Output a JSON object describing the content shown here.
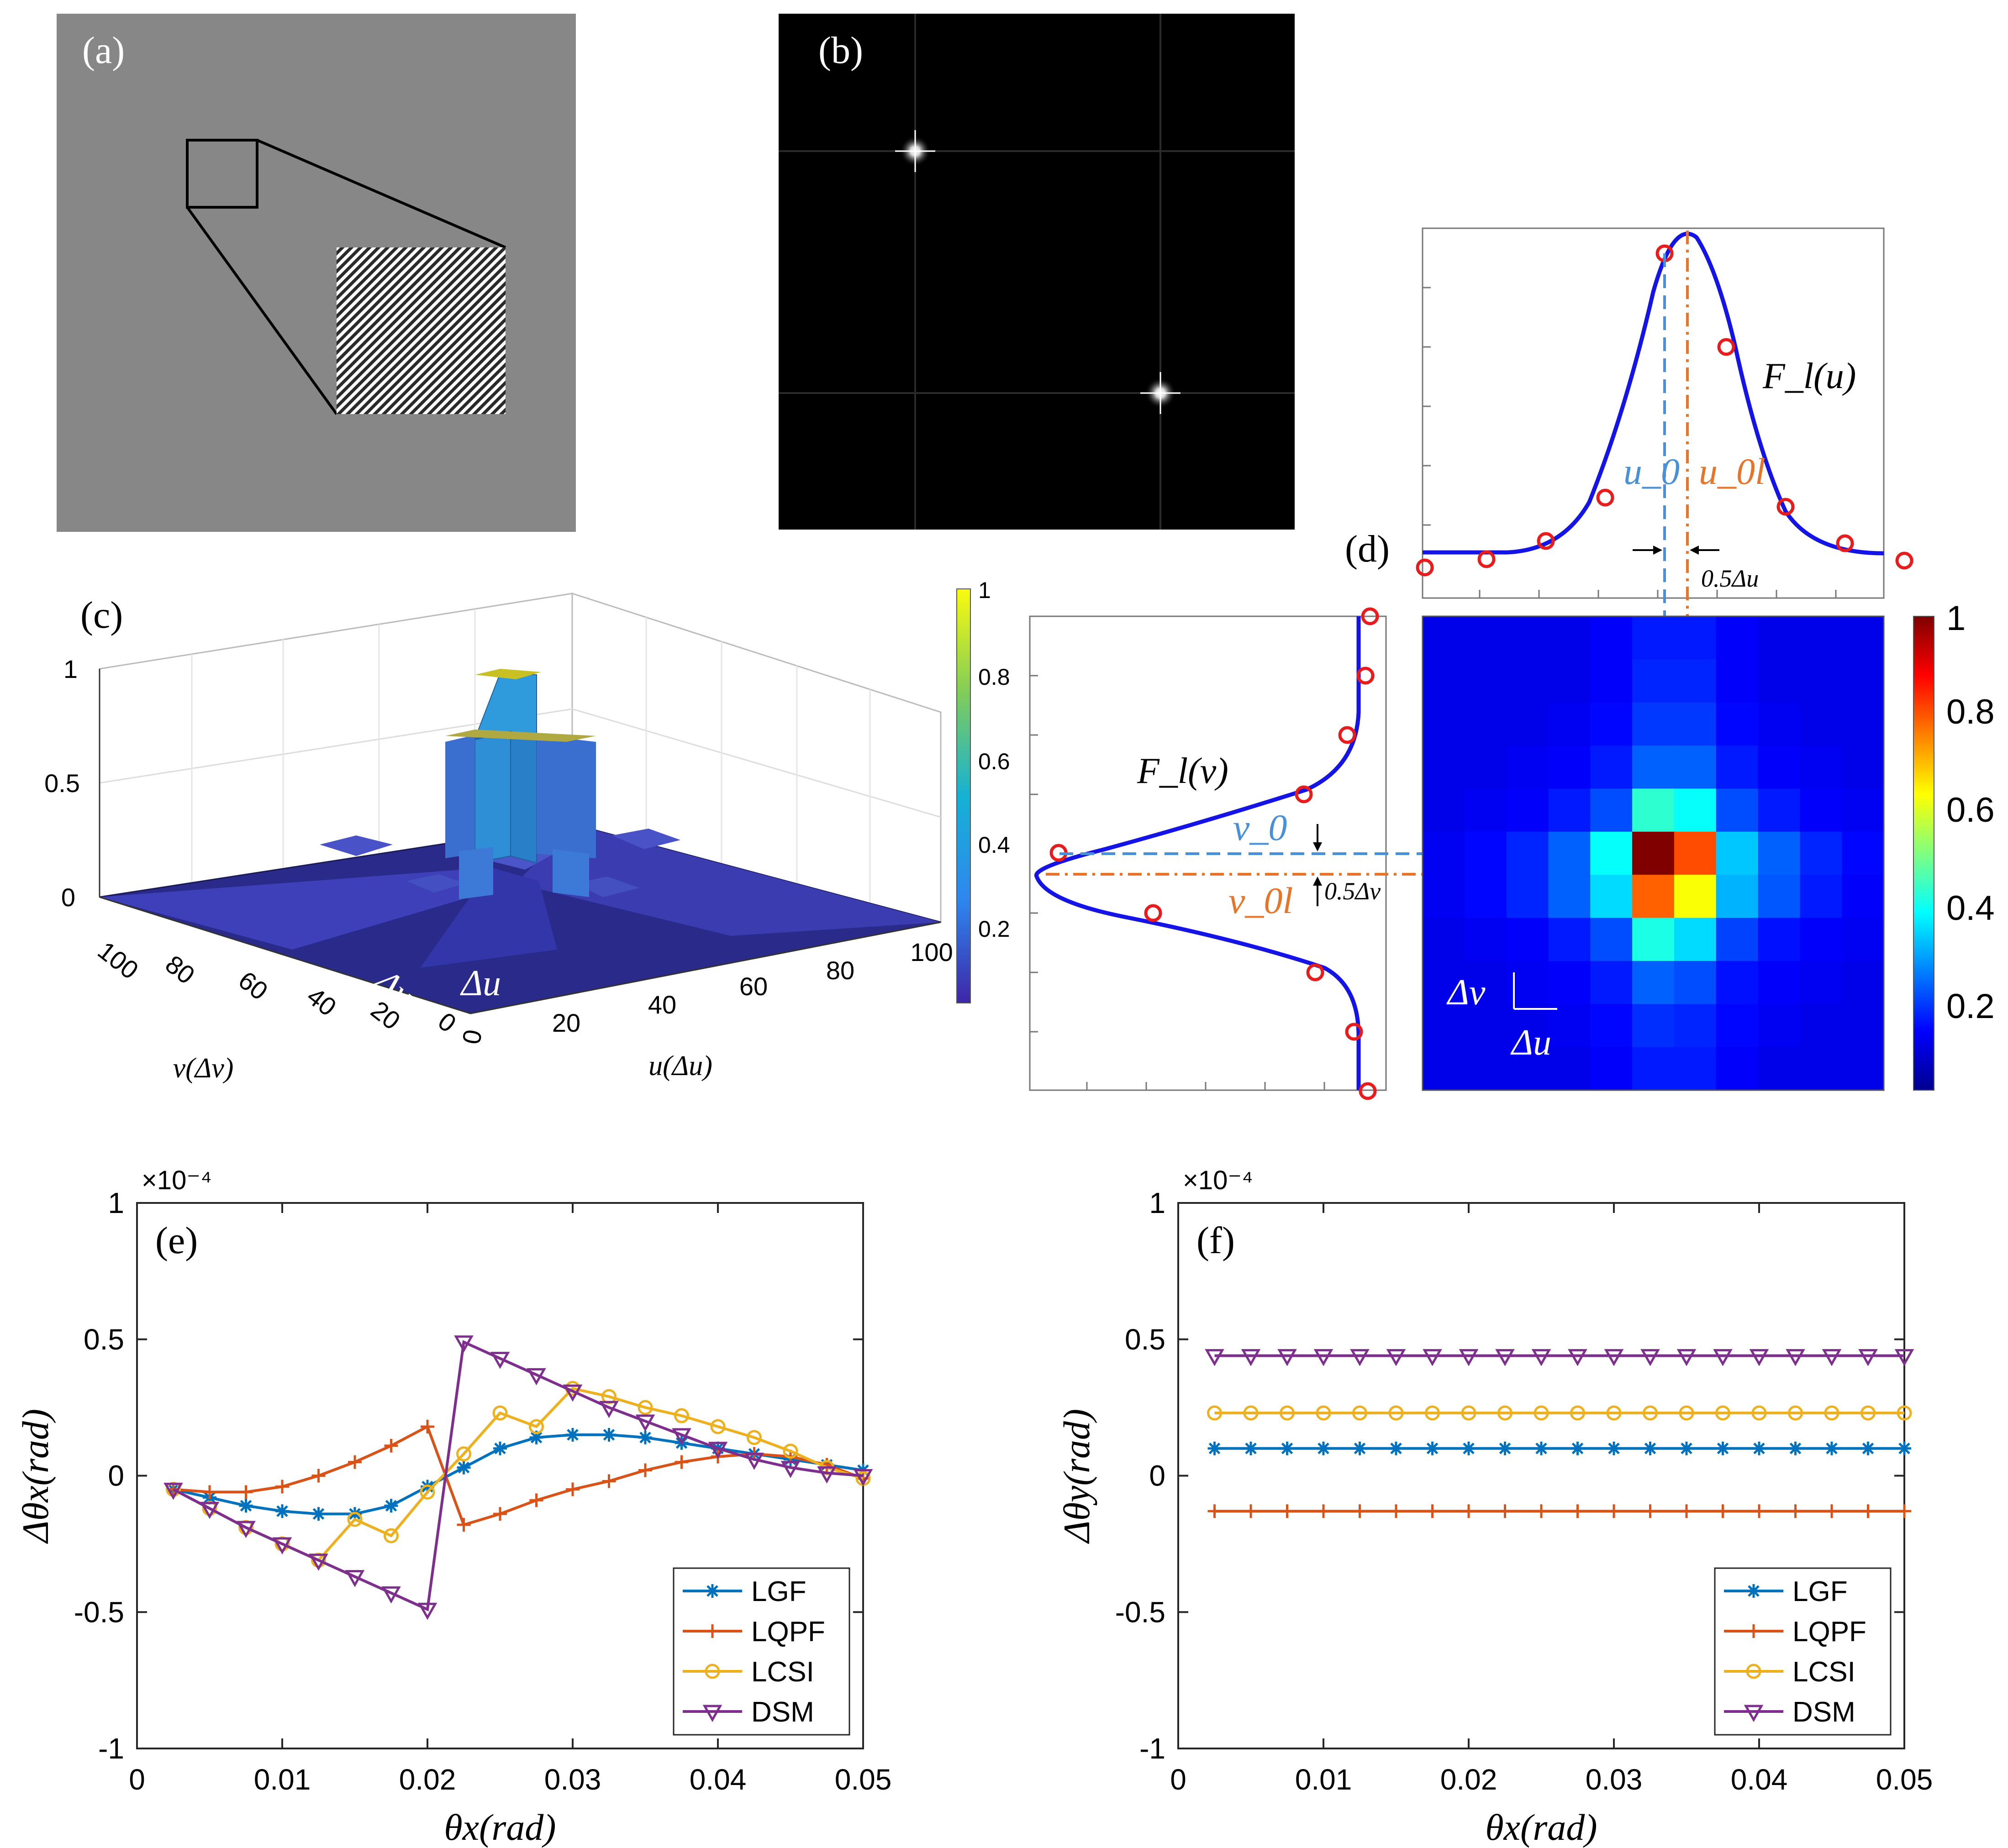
{
  "panels": {
    "a": {
      "label": "(a)"
    },
    "b": {
      "label": "(b)"
    },
    "c": {
      "label": "(c)",
      "zticks": [
        "0",
        "0.5",
        "1"
      ],
      "vticks": [
        "100",
        "80",
        "60",
        "40",
        "20",
        "0"
      ],
      "uticks": [
        "0",
        "20",
        "40",
        "60",
        "80",
        "100"
      ],
      "xlabel": "v(Δv)",
      "ylabel": "u(Δu)",
      "dv_label": "Δv",
      "du_label": "Δu",
      "colorbar_ticks": [
        "1",
        "0.8",
        "0.6",
        "0.4",
        "0.2"
      ],
      "colors": {
        "surface_low": "#26248e",
        "surface_peak": "#2f9bdc",
        "top": "#c9c023"
      }
    },
    "d": {
      "label": "(d)",
      "fu_label": "F_l(u)",
      "fv_label": "F_l(v)",
      "u0": "u_0",
      "u0l": "u_0l",
      "v0": "v_0",
      "v0l": "v_0l",
      "half_du": "0.5Δu",
      "half_dv": "0.5Δv",
      "dv_label": "Δv",
      "du_label": "Δu",
      "colorbar_ticks": [
        "1",
        "0.8",
        "0.6",
        "0.4",
        "0.2"
      ],
      "colors": {
        "fit": "#1414e6",
        "sample": "#e81c1c",
        "u0": "#4a90d9",
        "u0l": "#e8742a"
      }
    }
  },
  "chart_data": [
    {
      "panel": "(e)",
      "type": "line",
      "xlabel": "θx(rad)",
      "ylabel": "Δθx(rad)",
      "exponent": "×10⁻⁴",
      "xlim": [
        0,
        0.05
      ],
      "ylim": [
        -1,
        1
      ],
      "xticks": [
        "0",
        "0.01",
        "0.02",
        "0.03",
        "0.04",
        "0.05"
      ],
      "yticks": [
        "1",
        "0.5",
        "0",
        "-0.5",
        "-1"
      ],
      "x": [
        0.0025,
        0.005,
        0.0075,
        0.01,
        0.0125,
        0.015,
        0.0175,
        0.02,
        0.0225,
        0.025,
        0.0275,
        0.03,
        0.0325,
        0.035,
        0.0375,
        0.04,
        0.0425,
        0.045,
        0.0475,
        0.05
      ],
      "series": [
        {
          "name": "LGF",
          "color": "#0072bd",
          "marker": "star",
          "values": [
            -0.05,
            -0.08,
            -0.11,
            -0.13,
            -0.14,
            -0.14,
            -0.11,
            -0.04,
            0.03,
            0.1,
            0.14,
            0.15,
            0.15,
            0.14,
            0.12,
            0.1,
            0.08,
            0.06,
            0.04,
            0.02
          ]
        },
        {
          "name": "LQPF",
          "color": "#d95319",
          "marker": "plus",
          "values": [
            -0.05,
            -0.06,
            -0.06,
            -0.04,
            0.0,
            0.05,
            0.11,
            0.18,
            -0.18,
            -0.14,
            -0.09,
            -0.05,
            -0.02,
            0.02,
            0.05,
            0.07,
            0.08,
            0.07,
            0.04,
            -0.01
          ]
        },
        {
          "name": "LCSI",
          "color": "#edb120",
          "marker": "circle",
          "values": [
            -0.05,
            -0.12,
            -0.19,
            -0.25,
            -0.31,
            -0.16,
            -0.22,
            -0.06,
            0.08,
            0.23,
            0.18,
            0.32,
            0.29,
            0.25,
            0.22,
            0.18,
            0.14,
            0.09,
            0.03,
            -0.01
          ]
        },
        {
          "name": "DSM",
          "color": "#7e2f8e",
          "marker": "triangle",
          "values": [
            -0.05,
            -0.12,
            -0.19,
            -0.25,
            -0.31,
            -0.37,
            -0.43,
            -0.49,
            0.49,
            0.43,
            0.37,
            0.31,
            0.25,
            0.2,
            0.15,
            0.1,
            0.06,
            0.03,
            0.01,
            0.0
          ]
        }
      ],
      "legend": "bottom-right"
    },
    {
      "panel": "(f)",
      "type": "line",
      "xlabel": "θx(rad)",
      "ylabel": "Δθy(rad)",
      "exponent": "×10⁻⁴",
      "xlim": [
        0,
        0.05
      ],
      "ylim": [
        -1,
        1
      ],
      "xticks": [
        "0",
        "0.01",
        "0.02",
        "0.03",
        "0.04",
        "0.05"
      ],
      "yticks": [
        "1",
        "0.5",
        "0",
        "-0.5",
        "-1"
      ],
      "x": [
        0.0025,
        0.005,
        0.0075,
        0.01,
        0.0125,
        0.015,
        0.0175,
        0.02,
        0.0225,
        0.025,
        0.0275,
        0.03,
        0.0325,
        0.035,
        0.0375,
        0.04,
        0.0425,
        0.045,
        0.0475,
        0.05
      ],
      "series": [
        {
          "name": "LGF",
          "color": "#0072bd",
          "marker": "star",
          "values": [
            0.1,
            0.1,
            0.1,
            0.1,
            0.1,
            0.1,
            0.1,
            0.1,
            0.1,
            0.1,
            0.1,
            0.1,
            0.1,
            0.1,
            0.1,
            0.1,
            0.1,
            0.1,
            0.1,
            0.1
          ]
        },
        {
          "name": "LQPF",
          "color": "#d95319",
          "marker": "plus",
          "values": [
            -0.13,
            -0.13,
            -0.13,
            -0.13,
            -0.13,
            -0.13,
            -0.13,
            -0.13,
            -0.13,
            -0.13,
            -0.13,
            -0.13,
            -0.13,
            -0.13,
            -0.13,
            -0.13,
            -0.13,
            -0.13,
            -0.13,
            -0.13
          ]
        },
        {
          "name": "LCSI",
          "color": "#edb120",
          "marker": "circle",
          "values": [
            0.23,
            0.23,
            0.23,
            0.23,
            0.23,
            0.23,
            0.23,
            0.23,
            0.23,
            0.23,
            0.23,
            0.23,
            0.23,
            0.23,
            0.23,
            0.23,
            0.23,
            0.23,
            0.23,
            0.23
          ]
        },
        {
          "name": "DSM",
          "color": "#7e2f8e",
          "marker": "triangle",
          "values": [
            0.44,
            0.44,
            0.44,
            0.44,
            0.44,
            0.44,
            0.44,
            0.44,
            0.44,
            0.44,
            0.44,
            0.44,
            0.44,
            0.44,
            0.44,
            0.44,
            0.44,
            0.44,
            0.44,
            0.44
          ]
        }
      ],
      "legend": "bottom-right"
    }
  ]
}
